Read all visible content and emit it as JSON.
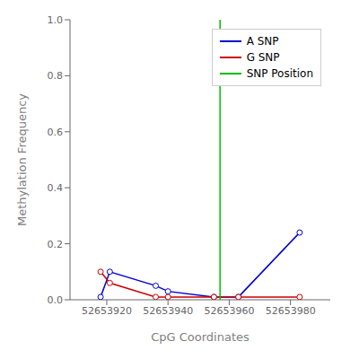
{
  "chart_data": {
    "type": "line",
    "xlabel": "CpG Coordinates",
    "ylabel": "Methylation Frequency",
    "x": [
      52653918,
      52653921,
      52653936,
      52653940,
      52653955,
      52653963,
      52653983
    ],
    "series": [
      {
        "name": "A SNP",
        "color": "#0000cc",
        "marker": "o",
        "values": [
          0.01,
          0.1,
          0.05,
          0.03,
          0.01,
          0.01,
          0.24
        ]
      },
      {
        "name": "G SNP",
        "color": "#cc0000",
        "marker": "o",
        "values": [
          0.1,
          0.06,
          0.01,
          0.01,
          0.01,
          0.01,
          0.01
        ]
      }
    ],
    "vline": {
      "name": "SNP Position",
      "x": 52653957,
      "color": "#00bb00"
    },
    "xlim": [
      52653908,
      52653993
    ],
    "xticks": [
      52653920,
      52653940,
      52653960,
      52653980
    ],
    "ylim": [
      0,
      1
    ],
    "yticks": [
      {
        "value": 0,
        "label": "0.0"
      },
      0.2,
      0.4,
      0.6,
      0.8,
      {
        "value": 1,
        "label": "1.0"
      }
    ],
    "grid": false,
    "legend": "upper right"
  }
}
